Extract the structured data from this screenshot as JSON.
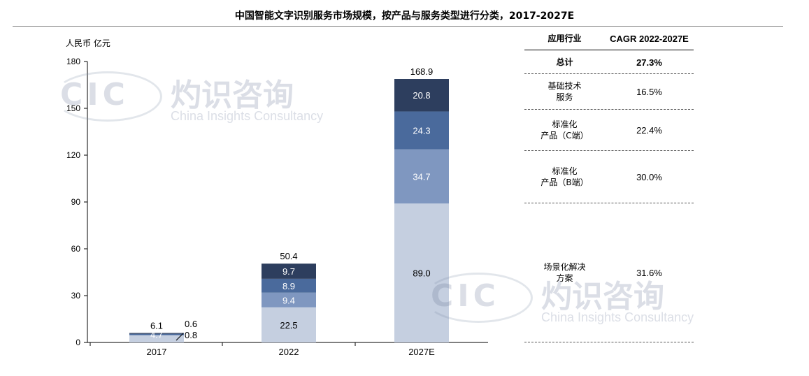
{
  "title": "中国智能文字识别服务市场规模，按产品与服务类型进行分类，2017-2027E",
  "watermark": {
    "cn": "灼识咨询",
    "en": "China Insights Consultancy",
    "logo": "CIC"
  },
  "chart_data": {
    "type": "bar",
    "stacked": true,
    "unit_label": "人民币 亿元",
    "categories": [
      "2017",
      "2022",
      "2027E"
    ],
    "ylim": [
      0,
      180
    ],
    "yticks": [
      0,
      30,
      60,
      90,
      120,
      150,
      180
    ],
    "totals": [
      "6.1",
      "50.4",
      "168.9"
    ],
    "series": [
      {
        "values": [
          4.7,
          22.5,
          89.0
        ],
        "labels": [
          "4.7",
          "22.5",
          "89.0"
        ],
        "color": "#c5cfe0",
        "label_color": "#000000"
      },
      {
        "values": [
          0.0,
          9.4,
          34.7
        ],
        "labels": [
          "",
          "9.4",
          "34.7"
        ],
        "color": "#7f97c0",
        "label_color": "#ffffff"
      },
      {
        "values": [
          0.8,
          8.9,
          24.3
        ],
        "labels": [
          "0.8",
          "8.9",
          "24.3"
        ],
        "color": "#4a6a9c",
        "label_color": "#ffffff"
      },
      {
        "values": [
          0.6,
          9.7,
          20.8
        ],
        "labels": [
          "0.6",
          "9.7",
          "20.8"
        ],
        "color": "#2d3e5e",
        "label_color": "#ffffff"
      }
    ],
    "grid": false
  },
  "cagr_table": {
    "header": {
      "industry": "应用行业",
      "cagr": "CAGR 2022-2027E"
    },
    "rows": [
      {
        "industry": "总计",
        "cagr": "27.3%",
        "bold": true
      },
      {
        "industry": "基础技术\n服务",
        "cagr": "16.5%"
      },
      {
        "industry": "标准化\n产品（C端）",
        "cagr": "22.4%"
      },
      {
        "industry": "标准化\n产品（B端）",
        "cagr": "30.0%"
      },
      {
        "industry": "场景化解决\n方案",
        "cagr": "31.6%"
      }
    ]
  }
}
